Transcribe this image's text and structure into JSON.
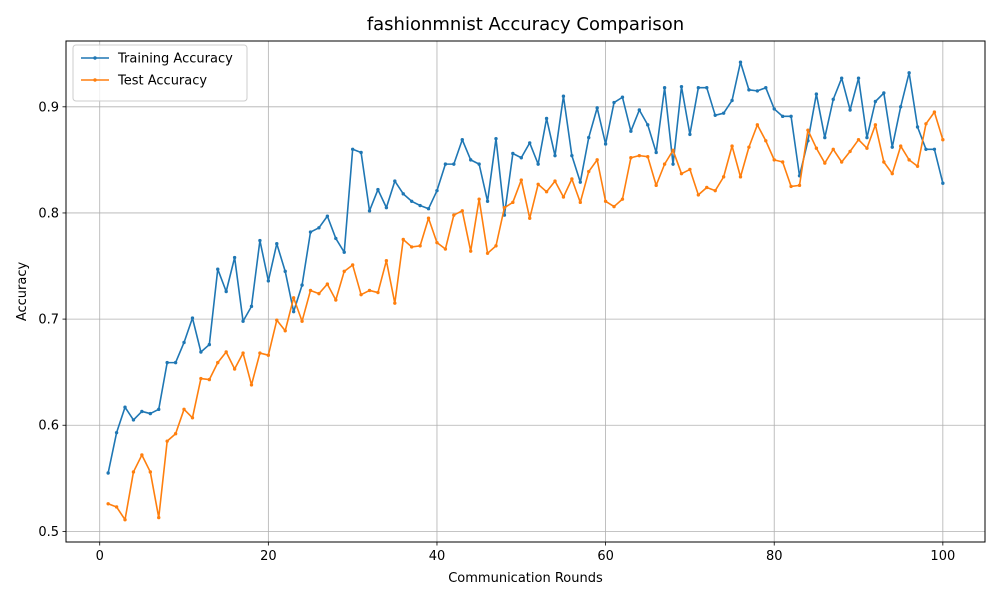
{
  "chart_data": {
    "type": "line",
    "title": "fashionmnist Accuracy Comparison",
    "xlabel": "Communication Rounds",
    "ylabel": "Accuracy",
    "xlim": [
      -4,
      105
    ],
    "ylim": [
      0.49,
      0.962
    ],
    "xticks": [
      0,
      20,
      40,
      60,
      80,
      100
    ],
    "yticks": [
      0.5,
      0.6,
      0.7,
      0.8,
      0.9
    ],
    "grid": true,
    "legend_position": "upper-left",
    "series": [
      {
        "name": "Training Accuracy",
        "color": "#1f77b4",
        "values": [
          0.555,
          0.593,
          0.617,
          0.605,
          0.613,
          0.611,
          0.615,
          0.659,
          0.659,
          0.678,
          0.701,
          0.669,
          0.676,
          0.747,
          0.726,
          0.758,
          0.698,
          0.712,
          0.774,
          0.736,
          0.771,
          0.745,
          0.707,
          0.732,
          0.782,
          0.786,
          0.797,
          0.776,
          0.763,
          0.86,
          0.857,
          0.802,
          0.822,
          0.805,
          0.83,
          0.818,
          0.811,
          0.807,
          0.804,
          0.821,
          0.846,
          0.846,
          0.869,
          0.85,
          0.846,
          0.811,
          0.87,
          0.798,
          0.856,
          0.852,
          0.866,
          0.846,
          0.889,
          0.854,
          0.91,
          0.854,
          0.829,
          0.871,
          0.899,
          0.865,
          0.904,
          0.909,
          0.877,
          0.897,
          0.883,
          0.857,
          0.918,
          0.846,
          0.919,
          0.874,
          0.918,
          0.918,
          0.892,
          0.894,
          0.906,
          0.942,
          0.916,
          0.915,
          0.918,
          0.898,
          0.891,
          0.891,
          0.835,
          0.868,
          0.912,
          0.871,
          0.907,
          0.927,
          0.897,
          0.927,
          0.871,
          0.905,
          0.913,
          0.862,
          0.9,
          0.932,
          0.881,
          0.86,
          0.86,
          0.828
        ]
      },
      {
        "name": "Test Accuracy",
        "color": "#ff7f0e",
        "values": [
          0.526,
          0.523,
          0.511,
          0.556,
          0.572,
          0.556,
          0.513,
          0.585,
          0.592,
          0.615,
          0.607,
          0.644,
          0.643,
          0.659,
          0.669,
          0.653,
          0.668,
          0.638,
          0.668,
          0.666,
          0.699,
          0.689,
          0.72,
          0.698,
          0.727,
          0.724,
          0.733,
          0.718,
          0.745,
          0.751,
          0.723,
          0.727,
          0.725,
          0.755,
          0.715,
          0.775,
          0.768,
          0.769,
          0.795,
          0.772,
          0.766,
          0.798,
          0.802,
          0.764,
          0.813,
          0.762,
          0.769,
          0.805,
          0.81,
          0.831,
          0.795,
          0.827,
          0.82,
          0.83,
          0.815,
          0.832,
          0.81,
          0.839,
          0.85,
          0.811,
          0.806,
          0.813,
          0.852,
          0.854,
          0.853,
          0.826,
          0.846,
          0.859,
          0.837,
          0.841,
          0.817,
          0.824,
          0.821,
          0.834,
          0.863,
          0.834,
          0.862,
          0.883,
          0.868,
          0.85,
          0.848,
          0.825,
          0.826,
          0.878,
          0.861,
          0.847,
          0.86,
          0.848,
          0.858,
          0.869,
          0.861,
          0.883,
          0.848,
          0.837,
          0.863,
          0.85,
          0.844,
          0.884,
          0.895,
          0.869
        ]
      }
    ]
  }
}
